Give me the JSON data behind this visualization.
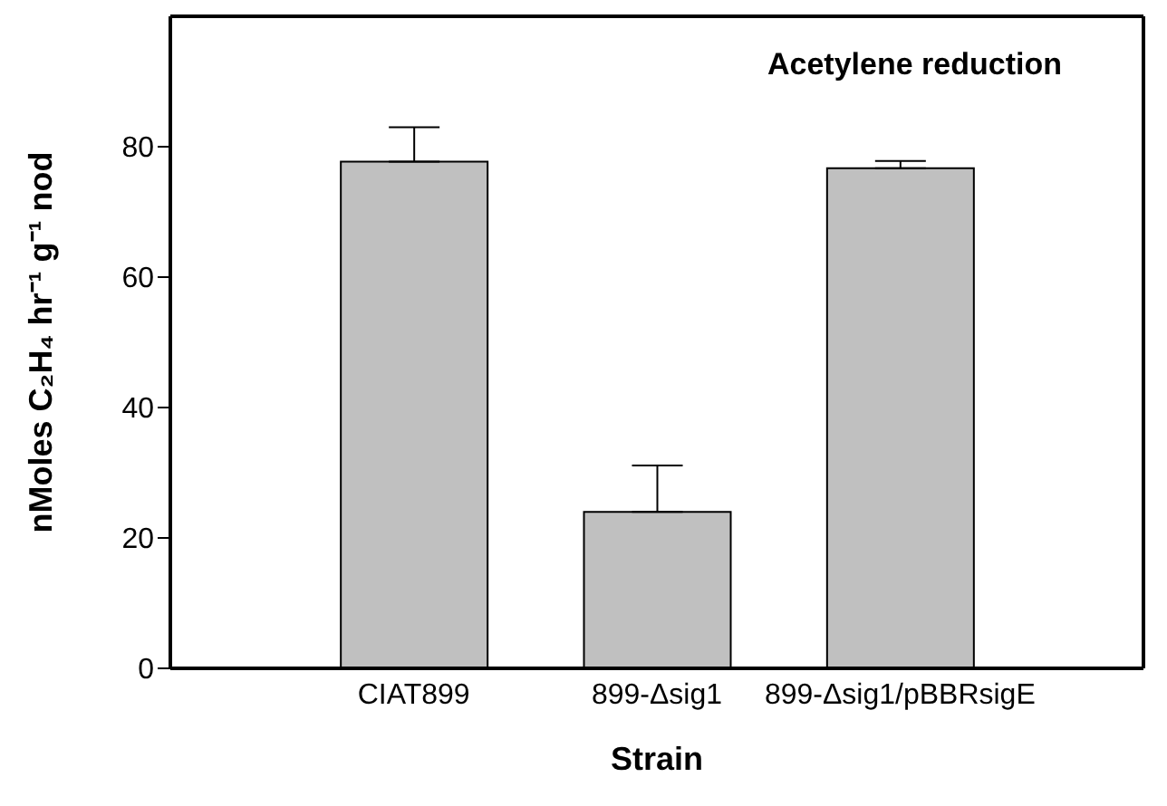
{
  "chart_data": {
    "type": "bar",
    "title": "Acetylene reduction",
    "xlabel": "Strain",
    "ylabel": "nMoles C₂H₄ hr⁻¹ g⁻¹ nod",
    "categories": [
      "CIAT899",
      "899-Δsig1",
      "899-Δsig1/pBBRsigE"
    ],
    "values": [
      77.7,
      24.0,
      76.7
    ],
    "errors": [
      [
        77.7,
        83.0
      ],
      [
        24.0,
        31.1
      ],
      [
        76.7,
        77.8
      ]
    ],
    "color": "#c0c0c0",
    "ylim": [
      0,
      100
    ],
    "yticks": [
      0,
      20,
      40,
      60,
      80
    ]
  }
}
